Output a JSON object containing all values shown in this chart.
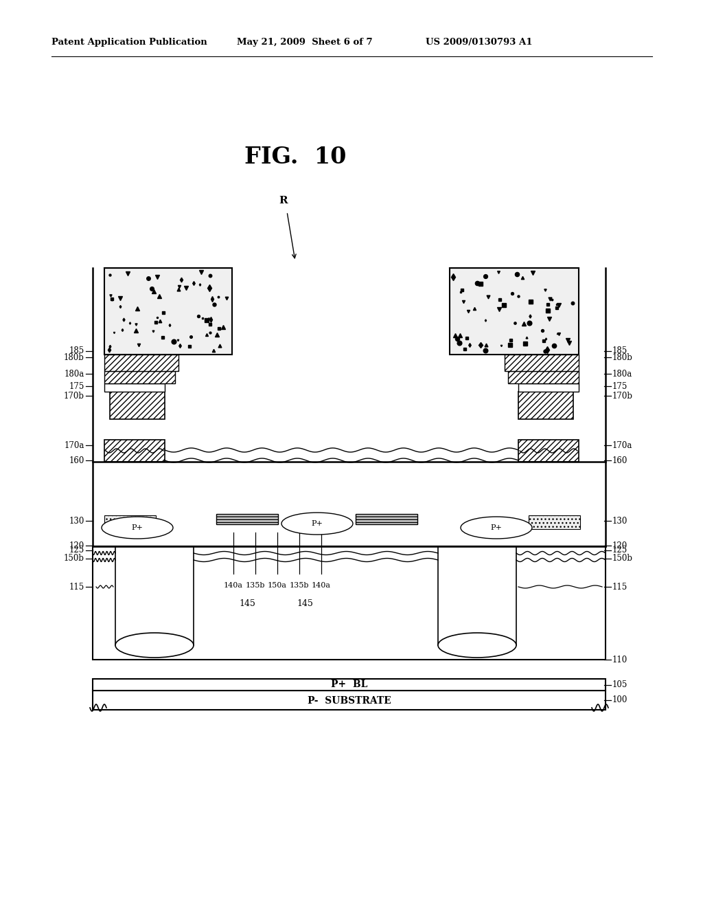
{
  "header_left": "Patent Application Publication",
  "header_center": "May 21, 2009  Sheet 6 of 7",
  "header_right": "US 2009/0130793 A1",
  "fig_label": "FIG.  10",
  "background_color": "#ffffff",
  "line_color": "#000000"
}
